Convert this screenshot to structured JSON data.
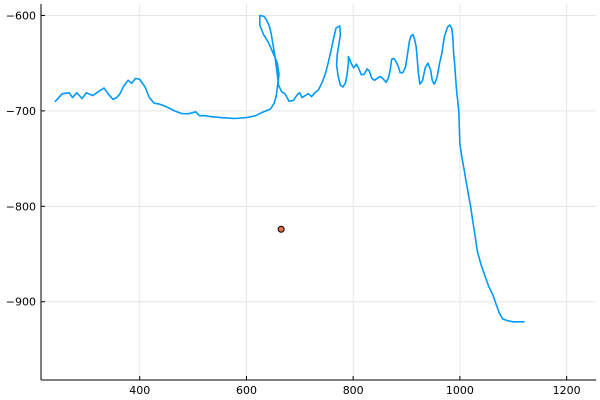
{
  "chart_data": {
    "type": "line",
    "title": "",
    "xlabel": "",
    "ylabel": "",
    "xlim": [
      215,
      1255
    ],
    "ylim": [
      -982,
      -588
    ],
    "grid": true,
    "legend": "none",
    "x_ticks": [
      400,
      600,
      800,
      1000,
      1200
    ],
    "x_tick_labels": [
      "400",
      "600",
      "800",
      "1000",
      "1200"
    ],
    "y_ticks": [
      -600,
      -700,
      -800,
      -900
    ],
    "y_tick_labels": [
      "−600",
      "−700",
      "−800",
      "−900"
    ],
    "series": [
      {
        "style": "line",
        "color": "#009af9",
        "segments": [
          [
            [
              242,
              -690
            ],
            [
              255,
              -682
            ],
            [
              268,
              -681
            ],
            [
              274,
              -686
            ],
            [
              282,
              -681
            ],
            [
              292,
              -687
            ],
            [
              300,
              -681
            ],
            [
              312,
              -684
            ],
            [
              322,
              -680
            ],
            [
              333,
              -676
            ],
            [
              342,
              -683
            ],
            [
              350,
              -688
            ],
            [
              357,
              -686
            ],
            [
              363,
              -682
            ],
            [
              370,
              -674
            ],
            [
              378,
              -668
            ],
            [
              385,
              -671
            ],
            [
              392,
              -666
            ],
            [
              400,
              -667
            ],
            [
              410,
              -675
            ],
            [
              418,
              -686
            ],
            [
              427,
              -692
            ],
            [
              438,
              -693
            ],
            [
              447,
              -695
            ],
            [
              455,
              -697
            ],
            [
              465,
              -700
            ],
            [
              480,
              -703
            ],
            [
              492,
              -703
            ],
            [
              505,
              -701
            ],
            [
              512,
              -705
            ],
            [
              522,
              -705
            ],
            [
              532,
              -706
            ],
            [
              552,
              -707
            ],
            [
              578,
              -708
            ],
            [
              600,
              -707
            ],
            [
              617,
              -705
            ],
            [
              628,
              -702
            ],
            [
              645,
              -698
            ],
            [
              652,
              -692
            ],
            [
              656,
              -684
            ],
            [
              658,
              -675
            ],
            [
              661,
              -662
            ],
            [
              658,
              -650
            ],
            [
              652,
              -642
            ],
            [
              641,
              -628
            ],
            [
              632,
              -620
            ],
            [
              625,
              -610
            ],
            [
              625,
              -600
            ],
            [
              633,
              -601
            ],
            [
              638,
              -605
            ],
            [
              642,
              -610
            ],
            [
              646,
              -618
            ],
            [
              649,
              -628
            ],
            [
              653,
              -641
            ],
            [
              657,
              -658
            ],
            [
              660,
              -673
            ],
            [
              666,
              -680
            ],
            [
              672,
              -682
            ],
            [
              680,
              -690
            ],
            [
              688,
              -689
            ],
            [
              695,
              -683
            ],
            [
              700,
              -681
            ],
            [
              704,
              -686
            ],
            [
              710,
              -684
            ],
            [
              716,
              -682
            ],
            [
              722,
              -685
            ],
            [
              728,
              -681
            ],
            [
              735,
              -678
            ],
            [
              742,
              -670
            ],
            [
              748,
              -661
            ],
            [
              753,
              -650
            ],
            [
              758,
              -638
            ],
            [
              763,
              -625
            ],
            [
              768,
              -613
            ],
            [
              775,
              -611
            ],
            [
              776,
              -620
            ],
            [
              773,
              -631
            ],
            [
              770,
              -641
            ],
            [
              769,
              -652
            ],
            [
              772,
              -664
            ],
            [
              776,
              -673
            ],
            [
              781,
              -675
            ],
            [
              786,
              -670
            ],
            [
              789,
              -660
            ],
            [
              791,
              -650
            ],
            [
              791,
              -643
            ],
            [
              796,
              -650
            ],
            [
              801,
              -655
            ],
            [
              806,
              -651
            ],
            [
              810,
              -655
            ],
            [
              815,
              -662
            ],
            [
              820,
              -662
            ],
            [
              826,
              -656
            ],
            [
              830,
              -658
            ],
            [
              835,
              -666
            ],
            [
              840,
              -668
            ],
            [
              847,
              -665
            ],
            [
              852,
              -664
            ],
            [
              857,
              -667
            ],
            [
              862,
              -670
            ],
            [
              867,
              -664
            ],
            [
              870,
              -655
            ],
            [
              872,
              -646
            ],
            [
              876,
              -645
            ],
            [
              880,
              -648
            ],
            [
              885,
              -654
            ],
            [
              888,
              -660
            ],
            [
              893,
              -660
            ],
            [
              898,
              -654
            ],
            [
              902,
              -640
            ],
            [
              905,
              -628
            ],
            [
              908,
              -622
            ],
            [
              912,
              -620
            ],
            [
              915,
              -625
            ],
            [
              918,
              -633
            ],
            [
              920,
              -645
            ],
            [
              922,
              -660
            ],
            [
              925,
              -672
            ],
            [
              930,
              -668
            ],
            [
              935,
              -655
            ],
            [
              940,
              -650
            ],
            [
              945,
              -657
            ],
            [
              948,
              -668
            ],
            [
              952,
              -672
            ],
            [
              957,
              -665
            ],
            [
              962,
              -650
            ],
            [
              966,
              -640
            ],
            [
              971,
              -622
            ],
            [
              977,
              -612
            ],
            [
              981,
              -610
            ],
            [
              985,
              -614
            ],
            [
              987,
              -625
            ],
            [
              988,
              -638
            ],
            [
              990,
              -650
            ],
            [
              992,
              -665
            ],
            [
              994,
              -680
            ],
            [
              996,
              -690
            ],
            [
              998,
              -703
            ],
            [
              999,
              -720
            ],
            [
              1000,
              -735
            ],
            [
              1004,
              -750
            ],
            [
              1008,
              -762
            ],
            [
              1012,
              -775
            ],
            [
              1016,
              -788
            ],
            [
              1020,
              -800
            ],
            [
              1024,
              -815
            ],
            [
              1028,
              -830
            ],
            [
              1033,
              -848
            ],
            [
              1040,
              -862
            ],
            [
              1047,
              -873
            ],
            [
              1054,
              -884
            ],
            [
              1062,
              -893
            ],
            [
              1068,
              -903
            ],
            [
              1074,
              -912
            ],
            [
              1080,
              -918
            ],
            [
              1090,
              -920
            ],
            [
              1100,
              -921
            ],
            [
              1110,
              -921
            ],
            [
              1120,
              -921
            ]
          ]
        ]
      },
      {
        "style": "marker",
        "color": "#e26f46",
        "stroke": "#000000",
        "points": [
          [
            665,
            -824
          ]
        ]
      }
    ]
  }
}
